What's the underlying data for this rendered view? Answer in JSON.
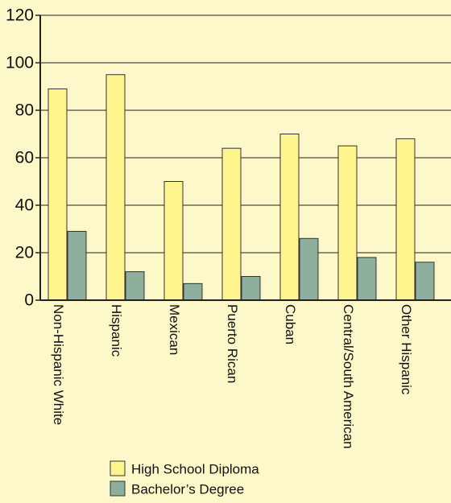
{
  "chart_data": {
    "type": "bar",
    "categories": [
      "Non-Hispanic White",
      "Hispanic",
      "Mexican",
      "Puerto Rican",
      "Cuban",
      "Central/South American",
      "Other Hispanic"
    ],
    "series": [
      {
        "name": "High School Diploma",
        "values": [
          89,
          95,
          50,
          64,
          70,
          65,
          68
        ]
      },
      {
        "name": "Bachelor’s Degree",
        "values": [
          29,
          12,
          7,
          10,
          26,
          18,
          16
        ]
      }
    ],
    "yticks": [
      0,
      20,
      40,
      60,
      80,
      100,
      120
    ],
    "ylim": [
      0,
      120
    ],
    "grid": true,
    "legend_position": "bottom-left",
    "colors": {
      "background": "#fdf8c9",
      "high_school": "#fff58f",
      "bachelors": "#8daf9b",
      "bar_stroke": "#333333",
      "grid": "#222222"
    }
  }
}
